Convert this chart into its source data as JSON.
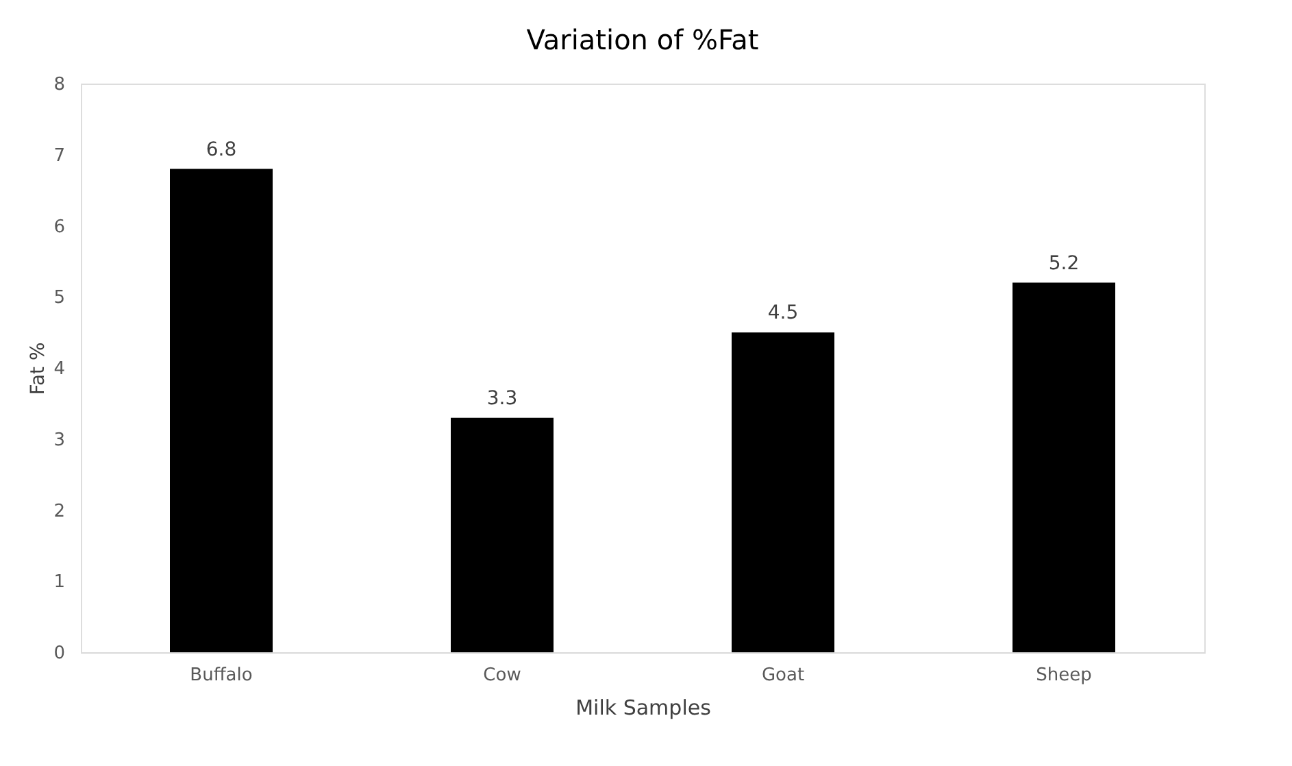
{
  "chart_data": {
    "type": "bar",
    "title": "Variation of %Fat",
    "xlabel": "Milk Samples",
    "ylabel": "Fat %",
    "categories": [
      "Buffalo",
      "Cow",
      "Goat",
      "Sheep"
    ],
    "values": [
      6.8,
      3.3,
      4.5,
      5.2
    ],
    "color": "#000000",
    "ylim": [
      0,
      8
    ],
    "yticks": [
      0,
      1,
      2,
      3,
      4,
      5,
      6,
      7,
      8
    ],
    "grid": false,
    "data_labels": true
  }
}
